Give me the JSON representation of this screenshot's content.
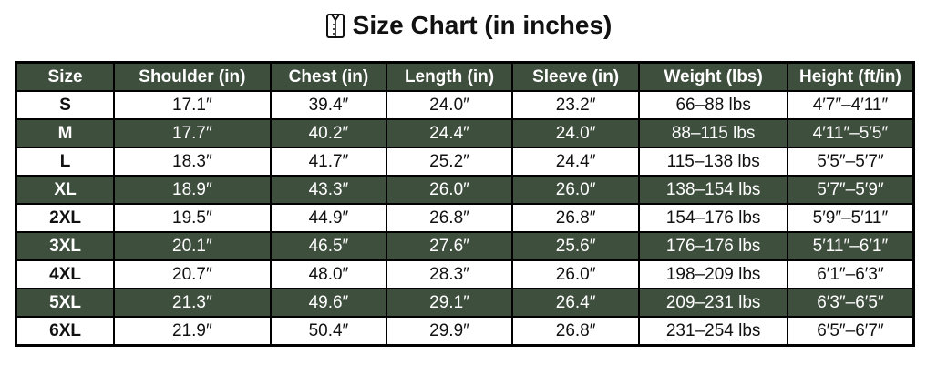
{
  "title": "Size Chart (in inches)",
  "title_icon": "shirt-icon",
  "colors": {
    "header_bg": "#3f4f3e",
    "alt_row_bg": "#3f4f3e",
    "border": "#000000"
  },
  "columns": [
    "Size",
    "Shoulder (in)",
    "Chest (in)",
    "Length (in)",
    "Sleeve (in)",
    "Weight (lbs)",
    "Height (ft/in)"
  ],
  "rows": [
    [
      "S",
      "17.1″",
      "39.4″",
      "24.0″",
      "23.2″",
      "66–88 lbs",
      "4′7″–4′11″"
    ],
    [
      "M",
      "17.7″",
      "40.2″",
      "24.4″",
      "24.0″",
      "88–115 lbs",
      "4′11″–5′5″"
    ],
    [
      "L",
      "18.3″",
      "41.7″",
      "25.2″",
      "24.4″",
      "115–138 lbs",
      "5′5″–5′7″"
    ],
    [
      "XL",
      "18.9″",
      "43.3″",
      "26.0″",
      "26.0″",
      "138–154 lbs",
      "5′7″–5′9″"
    ],
    [
      "2XL",
      "19.5″",
      "44.9″",
      "26.8″",
      "26.8″",
      "154–176 lbs",
      "5′9″–5′11″"
    ],
    [
      "3XL",
      "20.1″",
      "46.5″",
      "27.6″",
      "25.6″",
      "176–176 lbs",
      "5′11″–6′1″"
    ],
    [
      "4XL",
      "20.7″",
      "48.0″",
      "28.3″",
      "26.0″",
      "198–209 lbs",
      "6′1″–6′3″"
    ],
    [
      "5XL",
      "21.3″",
      "49.6″",
      "29.1″",
      "26.4″",
      "209–231 lbs",
      "6′3″–6′5″"
    ],
    [
      "6XL",
      "21.9″",
      "50.4″",
      "29.9″",
      "26.8″",
      "231–254 lbs",
      "6′5″–6′7″"
    ]
  ]
}
